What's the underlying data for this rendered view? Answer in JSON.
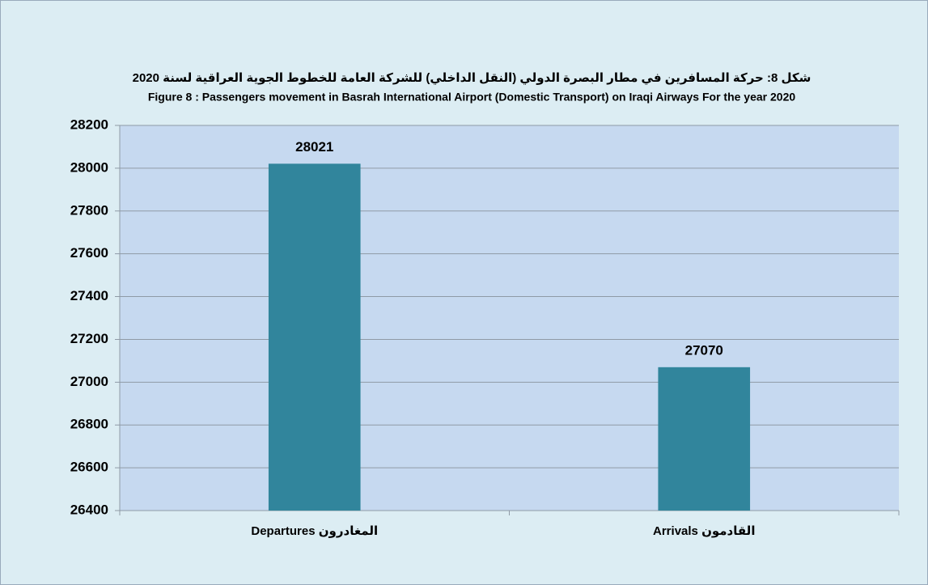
{
  "chart_data": {
    "type": "bar",
    "title": "شكل 8: حركة المسافرين في مطار البصرة الدولي (النقل الداخلي) للشركة العامة للخطوط الجوية العراقية لسنة 2020",
    "subtitle": "Figure 8 : Passengers  movement  in Basrah International Airport (Domestic Transport) on Iraqi Airways For  the year  2020",
    "categories": [
      "Departures  المغادرون",
      "Arrivals  القادمون"
    ],
    "values": [
      28021,
      27070
    ],
    "color": "#31859c",
    "ylim": [
      26400,
      28200
    ],
    "yticks": [
      26400,
      26600,
      26800,
      27000,
      27200,
      27400,
      27600,
      27800,
      28000,
      28200
    ],
    "grid": true
  }
}
